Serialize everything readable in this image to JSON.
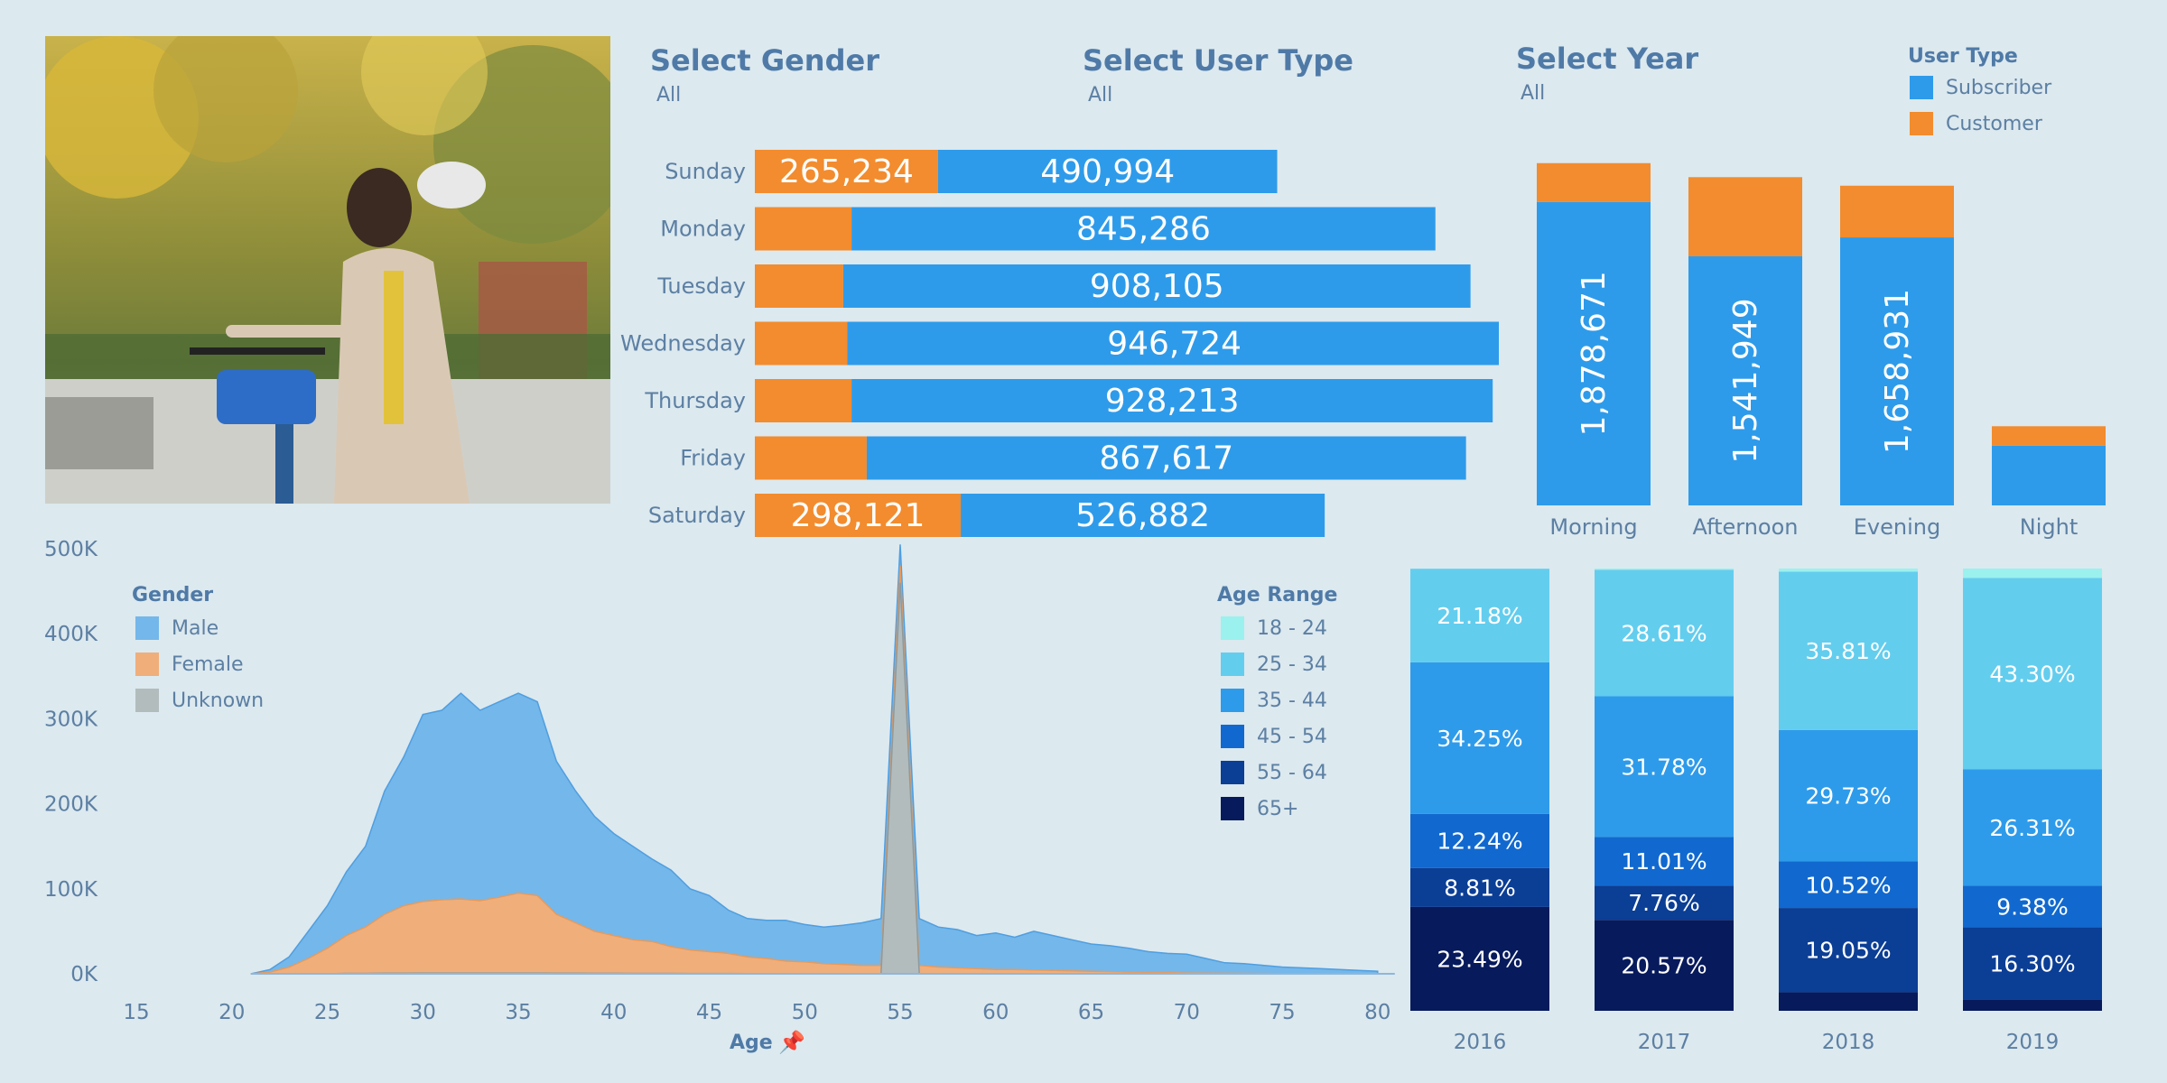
{
  "filters": [
    {
      "title": "Select Gender",
      "value": "All"
    },
    {
      "title": "Select User Type",
      "value": "All"
    },
    {
      "title": "Select Year",
      "value": "All"
    }
  ],
  "user_type_legend": {
    "title": "User Type",
    "items": [
      {
        "label": "Subscriber",
        "color": "#2e9bea"
      },
      {
        "label": "Customer",
        "color": "#f28c2e"
      }
    ]
  },
  "gender_legend": {
    "title": "Gender",
    "items": [
      {
        "label": "Male",
        "color": "#74b7ea"
      },
      {
        "label": "Female",
        "color": "#f0ae7a"
      },
      {
        "label": "Unknown",
        "color": "#b2bcbd"
      }
    ]
  },
  "age_legend": {
    "title": "Age Range",
    "items": [
      {
        "label": "18 - 24",
        "color": "#9bf1ee"
      },
      {
        "label": "25 - 34",
        "color": "#63cdee"
      },
      {
        "label": "35 - 44",
        "color": "#2e9bea"
      },
      {
        "label": "45 - 54",
        "color": "#1169cf"
      },
      {
        "label": "55 - 64",
        "color": "#0b3e95"
      },
      {
        "label": "65+",
        "color": "#061a5c"
      }
    ]
  },
  "photo": {
    "icon": "cyclist-photo"
  },
  "age_axis_label": "Age",
  "chart_data": [
    {
      "type": "bar",
      "orientation": "horizontal",
      "stacked": true,
      "categories": [
        "Sunday",
        "Monday",
        "Tuesday",
        "Wednesday",
        "Thursday",
        "Friday",
        "Saturday"
      ],
      "series": [
        {
          "name": "Customer",
          "values": [
            265234,
            140000,
            128000,
            134000,
            140000,
            162000,
            298121
          ],
          "labels": [
            "265,234",
            "",
            "",
            "",
            "",
            "",
            "298,121"
          ]
        },
        {
          "name": "Subscriber",
          "values": [
            490994,
            845286,
            908105,
            946724,
            928213,
            867617,
            526882
          ],
          "labels": [
            "490,994",
            "845,286",
            "908,105",
            "946,724",
            "928,213",
            "867,617",
            "526,882"
          ]
        }
      ],
      "colors": [
        "#f28c2e",
        "#2e9bea"
      ]
    },
    {
      "type": "bar",
      "orientation": "vertical",
      "stacked": true,
      "categories": [
        "Morning",
        "Afternoon",
        "Evening",
        "Night"
      ],
      "series": [
        {
          "name": "Subscriber",
          "values": [
            1878671,
            1541949,
            1658931,
            370000
          ],
          "labels": [
            "1,878,671",
            "1,541,949",
            "1,658,931",
            ""
          ]
        },
        {
          "name": "Customer",
          "values": [
            240000,
            490000,
            320000,
            120000
          ]
        }
      ],
      "colors": [
        "#2e9bea",
        "#f28c2e"
      ]
    },
    {
      "type": "area",
      "xlabel": "Age",
      "xlim": [
        14,
        81
      ],
      "ylim": [
        0,
        500000
      ],
      "x_ticks": [
        15,
        20,
        25,
        30,
        35,
        40,
        45,
        50,
        55,
        60,
        65,
        70,
        75,
        80
      ],
      "y_ticks": [
        0,
        100000,
        200000,
        300000,
        400000,
        500000
      ],
      "y_tick_labels": [
        "0K",
        "100K",
        "200K",
        "300K",
        "400K",
        "500K"
      ],
      "x": [
        21,
        22,
        23,
        24,
        25,
        26,
        27,
        28,
        29,
        30,
        31,
        32,
        33,
        34,
        35,
        36,
        37,
        38,
        39,
        40,
        41,
        42,
        43,
        44,
        45,
        46,
        47,
        48,
        49,
        50,
        51,
        52,
        53,
        54,
        55,
        56,
        57,
        58,
        59,
        60,
        61,
        62,
        63,
        64,
        65,
        66,
        67,
        68,
        69,
        70,
        71,
        72,
        73,
        74,
        75,
        76,
        77,
        78,
        79,
        80
      ],
      "series": [
        {
          "name": "Male",
          "values": [
            0,
            5000,
            20000,
            50000,
            80000,
            120000,
            150000,
            215000,
            255000,
            305000,
            310000,
            330000,
            310000,
            320000,
            330000,
            320000,
            250000,
            215000,
            185000,
            165000,
            150000,
            135000,
            122000,
            100000,
            92000,
            75000,
            65000,
            63000,
            63000,
            58000,
            55000,
            57000,
            60000,
            65000,
            505000,
            65000,
            55000,
            52000,
            45000,
            48000,
            43000,
            50000,
            45000,
            40000,
            35000,
            33000,
            30000,
            26000,
            24000,
            23000,
            18000,
            13000,
            12000,
            10000,
            8000,
            7000,
            6000,
            5000,
            4000,
            3000
          ]
        },
        {
          "name": "Female",
          "values": [
            0,
            2000,
            8000,
            18000,
            30000,
            45000,
            55000,
            70000,
            80000,
            85000,
            87000,
            88000,
            86000,
            90000,
            95000,
            92000,
            70000,
            60000,
            50000,
            45000,
            40000,
            38000,
            32000,
            28000,
            26000,
            24000,
            20000,
            18000,
            15000,
            14000,
            12000,
            11000,
            10000,
            10000,
            480000,
            10000,
            8000,
            7000,
            6000,
            5000,
            5000,
            4500,
            4000,
            3500,
            3000,
            2500,
            2000,
            1800,
            1500,
            1000,
            800,
            600,
            500,
            400,
            300,
            200,
            200,
            100,
            100,
            0
          ]
        },
        {
          "name": "Unknown",
          "values": [
            0,
            0,
            0,
            0,
            0,
            500,
            500,
            800,
            800,
            1000,
            1000,
            1000,
            1000,
            1000,
            1000,
            1000,
            800,
            800,
            600,
            600,
            500,
            500,
            500,
            400,
            400,
            400,
            300,
            300,
            300,
            300,
            300,
            300,
            300,
            300,
            460000,
            300,
            300,
            200,
            200,
            200,
            200,
            200,
            200,
            100,
            100,
            100,
            100,
            100,
            100,
            0,
            0,
            0,
            0,
            0,
            0,
            0,
            0,
            0,
            0,
            0
          ]
        }
      ]
    },
    {
      "type": "bar",
      "orientation": "vertical",
      "stacked": true,
      "normalized": true,
      "categories": [
        "2016",
        "2017",
        "2018",
        "2019"
      ],
      "series": [
        {
          "name": "65+",
          "values": [
            23.49,
            20.57,
            4.2,
            2.6
          ],
          "labels": [
            "23.49%",
            "20.57%",
            "",
            ""
          ]
        },
        {
          "name": "55 - 64",
          "values": [
            8.81,
            7.76,
            19.05,
            16.3
          ],
          "labels": [
            "8.81%",
            "7.76%",
            "19.05%",
            "16.30%"
          ]
        },
        {
          "name": "45 - 54",
          "values": [
            12.24,
            11.01,
            10.52,
            9.38
          ],
          "labels": [
            "12.24%",
            "11.01%",
            "10.52%",
            "9.38%"
          ]
        },
        {
          "name": "35 - 44",
          "values": [
            34.25,
            31.78,
            29.73,
            26.31
          ],
          "labels": [
            "34.25%",
            "31.78%",
            "29.73%",
            "26.31%"
          ]
        },
        {
          "name": "25 - 34",
          "values": [
            21.18,
            28.61,
            35.81,
            43.3
          ],
          "labels": [
            "21.18%",
            "28.61%",
            "35.81%",
            "43.30%"
          ]
        },
        {
          "name": "18 - 24",
          "values": [
            0.03,
            0.27,
            0.69,
            2.11
          ],
          "labels": [
            "",
            "",
            "",
            ""
          ]
        }
      ],
      "colors": [
        "#061a5c",
        "#0b3e95",
        "#1169cf",
        "#2e9bea",
        "#63cdee",
        "#9bf1ee"
      ]
    }
  ]
}
